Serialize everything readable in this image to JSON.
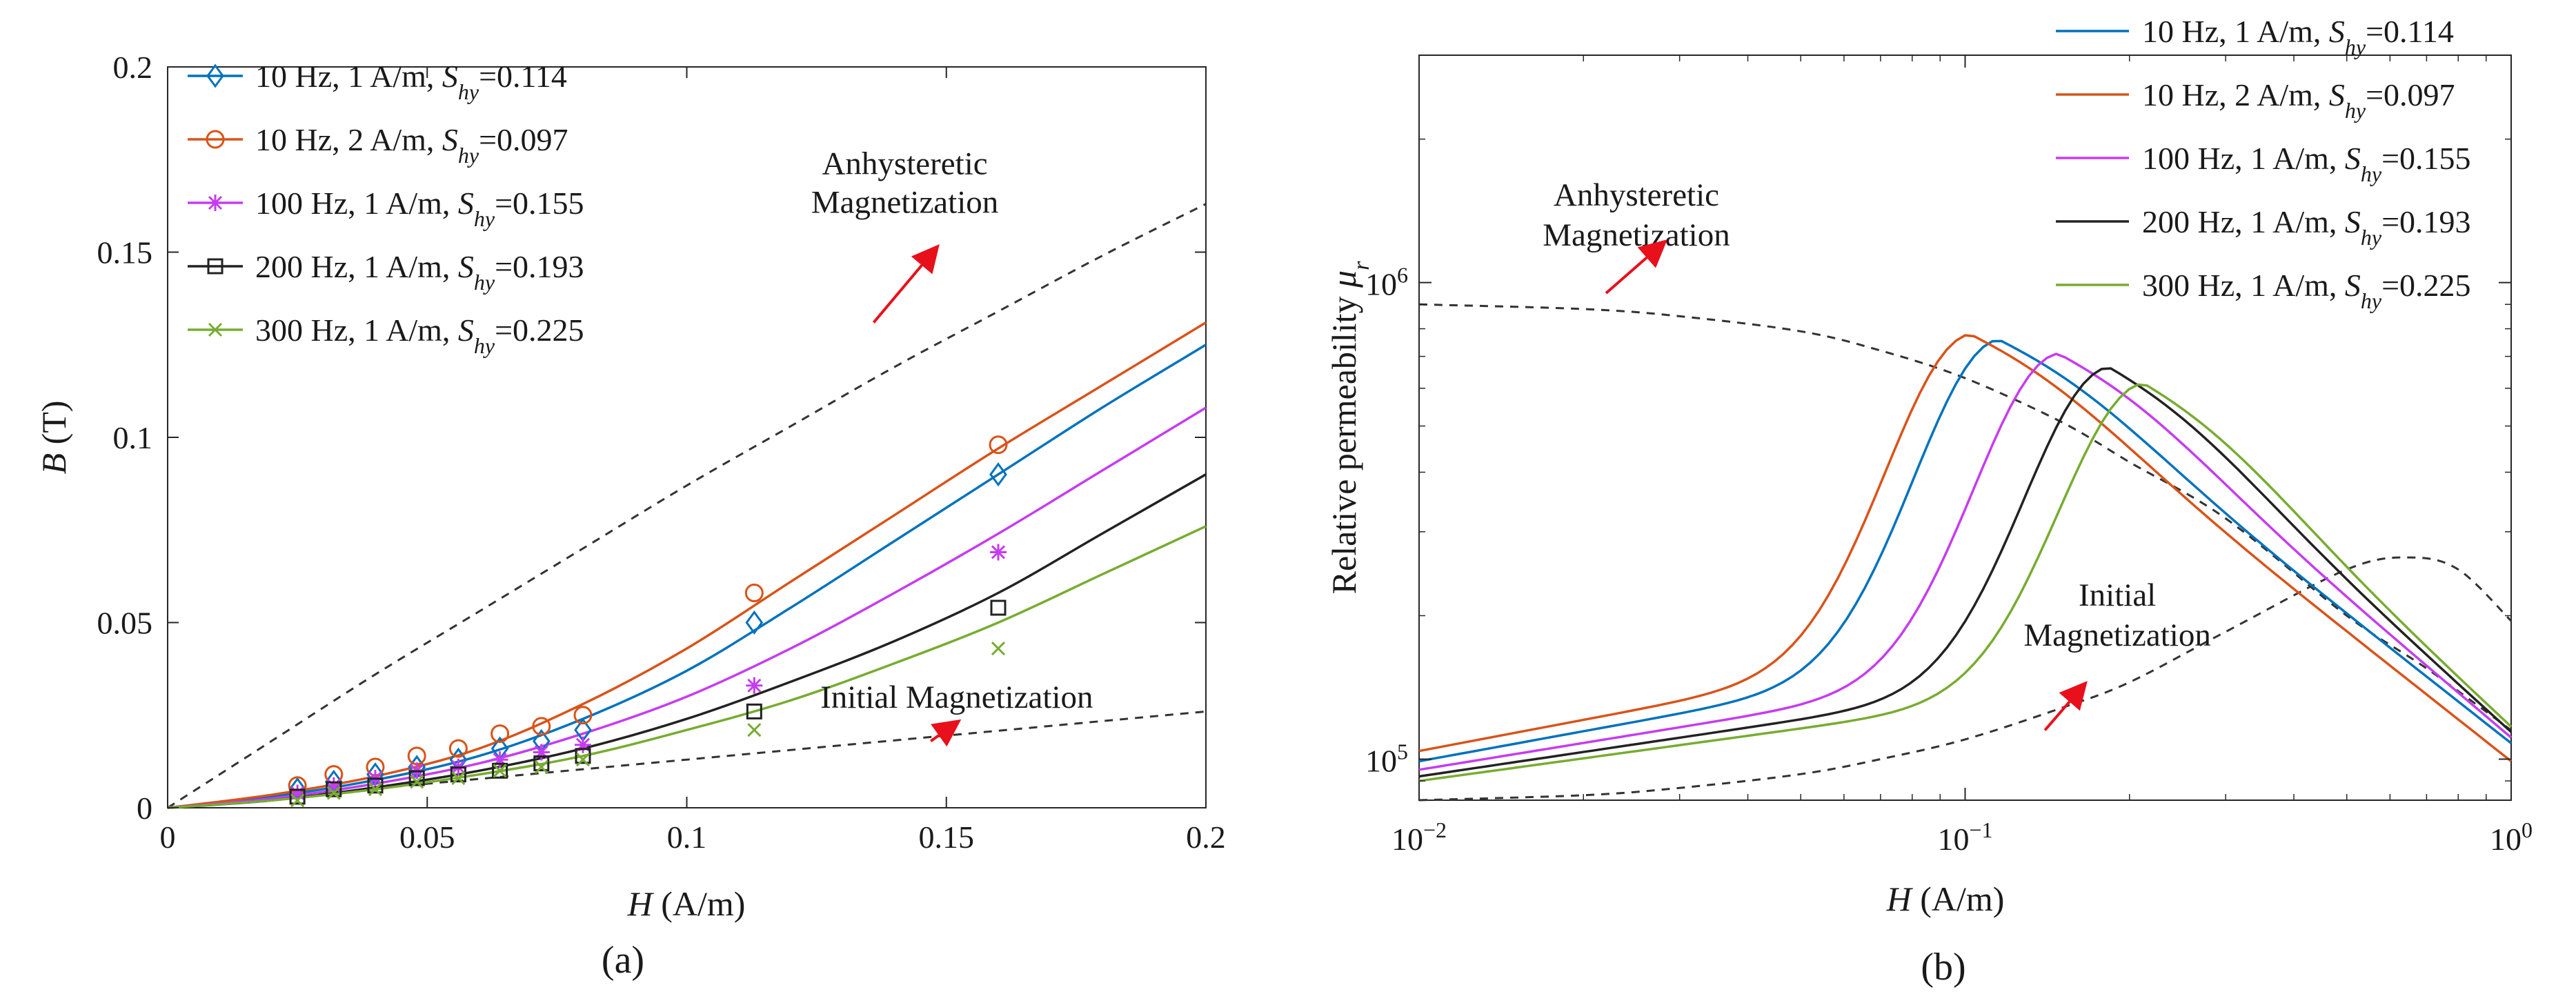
{
  "chart_data": [
    {
      "id": "a",
      "type": "line",
      "caption": "(a)",
      "xlabel": {
        "sym": "H",
        "unit": " (A/m)"
      },
      "ylabel": {
        "sym": "B",
        "unit": " (T)"
      },
      "xlim": [
        0,
        0.2
      ],
      "ylim": [
        0,
        0.2
      ],
      "xticks": [
        {
          "v": 0,
          "label": "0"
        },
        {
          "v": 0.05,
          "label": "0.05"
        },
        {
          "v": 0.1,
          "label": "0.1"
        },
        {
          "v": 0.15,
          "label": "0.15"
        },
        {
          "v": 0.2,
          "label": "0.2"
        }
      ],
      "yticks": [
        {
          "v": 0,
          "label": "0"
        },
        {
          "v": 0.05,
          "label": "0.05"
        },
        {
          "v": 0.1,
          "label": "0.1"
        },
        {
          "v": 0.15,
          "label": "0.15"
        },
        {
          "v": 0.2,
          "label": "0.2"
        }
      ],
      "legend": "top-left",
      "series": [
        {
          "name": "10 Hz, 1 A/m, Shy=0.114",
          "label_main": "10 Hz, 1 A/m, ",
          "label_value": "=0.114",
          "color": "#0072BD",
          "marker": "diamond",
          "curve_x": [
            0,
            0.02,
            0.04,
            0.06,
            0.08,
            0.1,
            0.12,
            0.14,
            0.16,
            0.18,
            0.2
          ],
          "curve_y": [
            0,
            0.003,
            0.0075,
            0.014,
            0.024,
            0.037,
            0.054,
            0.072,
            0.09,
            0.108,
            0.125
          ],
          "points_x": [
            0.025,
            0.032,
            0.04,
            0.048,
            0.056,
            0.064,
            0.072,
            0.08,
            0.113,
            0.16
          ],
          "points_y": [
            0.005,
            0.007,
            0.009,
            0.011,
            0.013,
            0.016,
            0.018,
            0.021,
            0.05,
            0.09
          ]
        },
        {
          "name": "10 Hz, 2 A/m, Shy=0.097",
          "label_main": "10 Hz, 2 A/m, ",
          "label_value": "=0.097",
          "color": "#D95319",
          "marker": "circle",
          "curve_x": [
            0,
            0.02,
            0.04,
            0.06,
            0.08,
            0.1,
            0.12,
            0.14,
            0.16,
            0.18,
            0.2
          ],
          "curve_y": [
            0,
            0.0035,
            0.0085,
            0.016,
            0.028,
            0.043,
            0.061,
            0.079,
            0.097,
            0.114,
            0.131
          ],
          "points_x": [
            0.025,
            0.032,
            0.04,
            0.048,
            0.056,
            0.064,
            0.072,
            0.08,
            0.113,
            0.16
          ],
          "points_y": [
            0.006,
            0.009,
            0.011,
            0.014,
            0.016,
            0.02,
            0.022,
            0.025,
            0.058,
            0.098
          ]
        },
        {
          "name": "100 Hz, 1 A/m, Shy=0.155",
          "label_main": "100 Hz, 1 A/m, ",
          "label_value": "=0.155",
          "color": "#C63CF0",
          "marker": "asterisk",
          "curve_x": [
            0,
            0.02,
            0.04,
            0.06,
            0.08,
            0.1,
            0.12,
            0.14,
            0.16,
            0.18,
            0.2
          ],
          "curve_y": [
            0,
            0.0025,
            0.0065,
            0.012,
            0.02,
            0.03,
            0.043,
            0.058,
            0.074,
            0.091,
            0.108
          ],
          "points_x": [
            0.025,
            0.032,
            0.04,
            0.048,
            0.056,
            0.064,
            0.072,
            0.08,
            0.113,
            0.16
          ],
          "points_y": [
            0.004,
            0.006,
            0.008,
            0.01,
            0.011,
            0.013,
            0.015,
            0.017,
            0.033,
            0.069
          ]
        },
        {
          "name": "200 Hz, 1 A/m, Shy=0.193",
          "label_main": "200 Hz, 1 A/m, ",
          "label_value": "=0.193",
          "color": "#222222",
          "marker": "square",
          "curve_x": [
            0,
            0.02,
            0.04,
            0.06,
            0.08,
            0.1,
            0.12,
            0.14,
            0.16,
            0.18,
            0.2
          ],
          "curve_y": [
            0,
            0.002,
            0.0055,
            0.01,
            0.016,
            0.024,
            0.034,
            0.045,
            0.058,
            0.074,
            0.09
          ],
          "points_x": [
            0.025,
            0.032,
            0.04,
            0.048,
            0.056,
            0.064,
            0.072,
            0.08,
            0.113,
            0.16
          ],
          "points_y": [
            0.003,
            0.005,
            0.006,
            0.008,
            0.009,
            0.01,
            0.012,
            0.014,
            0.026,
            0.054
          ]
        },
        {
          "name": "300 Hz, 1 A/m, Shy=0.225",
          "label_main": "300 Hz, 1 A/m, ",
          "label_value": "=0.225",
          "color": "#77AC30",
          "marker": "x",
          "curve_x": [
            0,
            0.02,
            0.04,
            0.06,
            0.08,
            0.1,
            0.12,
            0.14,
            0.16,
            0.18,
            0.2
          ],
          "curve_y": [
            0,
            0.002,
            0.005,
            0.009,
            0.014,
            0.021,
            0.029,
            0.039,
            0.05,
            0.063,
            0.076
          ],
          "points_x": [
            0.025,
            0.032,
            0.04,
            0.048,
            0.056,
            0.064,
            0.072,
            0.08,
            0.113,
            0.16
          ],
          "points_y": [
            0.002,
            0.004,
            0.005,
            0.007,
            0.008,
            0.01,
            0.011,
            0.013,
            0.021,
            0.043
          ]
        }
      ],
      "reference_curves": [
        {
          "name": "Anhysteretic Magnetization",
          "curve_x": [
            0,
            0.02,
            0.04,
            0.06,
            0.08,
            0.1,
            0.12,
            0.14,
            0.16,
            0.18,
            0.2
          ],
          "curve_y": [
            0,
            0.018,
            0.036,
            0.053,
            0.07,
            0.087,
            0.103,
            0.119,
            0.134,
            0.149,
            0.163
          ]
        },
        {
          "name": "Initial Magnetization",
          "curve_x": [
            0,
            0.05,
            0.1,
            0.15,
            0.2
          ],
          "curve_y": [
            0,
            0.0065,
            0.013,
            0.0195,
            0.026
          ]
        }
      ],
      "annotations": [
        {
          "lines": [
            "Anhysteretic",
            "Magnetization"
          ],
          "at": [
            0.142,
            0.171
          ]
        },
        {
          "lines": [
            "Initial Magnetization"
          ],
          "at": [
            0.152,
            0.027
          ]
        }
      ]
    },
    {
      "id": "b",
      "type": "line",
      "caption": "(b)",
      "xscale": "log",
      "yscale": "log",
      "xlabel": {
        "sym": "H",
        "unit": " (A/m)"
      },
      "ylabel": {
        "text": "Relative permeability ",
        "sym": "μ",
        "sub": "r"
      },
      "xlim": [
        0.01,
        1
      ],
      "ylim": [
        82000,
        3000000
      ],
      "xticks": [
        {
          "v": 0.01,
          "base": "10",
          "exp": "−2"
        },
        {
          "v": 0.1,
          "base": "10",
          "exp": "−1"
        },
        {
          "v": 1,
          "base": "10",
          "exp": "0"
        }
      ],
      "yticks": [
        {
          "v": 100000,
          "base": "10",
          "exp": "5"
        },
        {
          "v": 1000000,
          "base": "10",
          "exp": "6"
        }
      ],
      "legend": "top-right",
      "series": [
        {
          "name": "10 Hz, 1 A/m, Shy=0.114",
          "label_main": "10 Hz, 1 A/m, ",
          "label_value": "=0.114",
          "color": "#0072BD",
          "peak_H": 0.115,
          "peak_mu": 760000,
          "low_mu": 99000,
          "high_mu": 108000
        },
        {
          "name": "10 Hz, 2 A/m, Shy=0.097",
          "label_main": "10 Hz, 2 A/m, ",
          "label_value": "=0.097",
          "color": "#D95319",
          "peak_H": 0.102,
          "peak_mu": 780000,
          "low_mu": 104000,
          "high_mu": 99000
        },
        {
          "name": "100 Hz, 1 A/m, Shy=0.155",
          "label_main": "100 Hz, 1 A/m, ",
          "label_value": "=0.155",
          "color": "#C63CF0",
          "peak_H": 0.148,
          "peak_mu": 710000,
          "low_mu": 95000,
          "high_mu": 111000
        },
        {
          "name": "200 Hz, 1 A/m, Shy=0.193",
          "label_main": "200 Hz, 1 A/m, ",
          "label_value": "=0.193",
          "color": "#222222",
          "peak_H": 0.183,
          "peak_mu": 665000,
          "low_mu": 92000,
          "high_mu": 114000
        },
        {
          "name": "300 Hz, 1 A/m, Shy=0.225",
          "label_main": "300 Hz, 1 A/m, ",
          "label_value": "=0.225",
          "color": "#77AC30",
          "peak_H": 0.212,
          "peak_mu": 615000,
          "low_mu": 90000,
          "high_mu": 117000
        }
      ],
      "reference_curves": [
        {
          "name": "Anhysteretic Magnetization",
          "curve_x": [
            0.01,
            0.02,
            0.03,
            0.05,
            0.07,
            0.1,
            0.15,
            0.2,
            0.3,
            0.5,
            0.7,
            1.0
          ],
          "curve_y": [
            900000,
            880000,
            850000,
            790000,
            720000,
            630000,
            510000,
            420000,
            320000,
            200000,
            155000,
            115000
          ]
        },
        {
          "name": "Initial Magnetization",
          "curve_x": [
            0.01,
            0.02,
            0.03,
            0.05,
            0.07,
            0.1,
            0.15,
            0.2,
            0.3,
            0.5,
            0.65,
            0.8,
            1.0
          ],
          "curve_y": [
            82000,
            84000,
            87000,
            93000,
            100000,
            110000,
            128000,
            145000,
            185000,
            250000,
            265000,
            250000,
            195000
          ]
        }
      ],
      "annotations": [
        {
          "lines": [
            "Anhysteretic",
            "Magnetization"
          ],
          "at": [
            0.025,
            1450000
          ]
        },
        {
          "lines": [
            "Initial",
            "Magnetization"
          ],
          "at": [
            0.19,
            210000
          ]
        }
      ]
    }
  ]
}
